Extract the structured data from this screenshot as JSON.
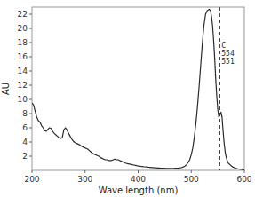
{
  "chart_data": {
    "type": "line",
    "xlabel": "Wave length  (nm)",
    "ylabel": "AU",
    "xlim": [
      200,
      600
    ],
    "ylim": [
      0,
      23
    ],
    "xticks": [
      200,
      300,
      400,
      500,
      600
    ],
    "yticks": [
      2,
      4,
      6,
      8,
      10,
      12,
      14,
      16,
      18,
      20,
      22
    ],
    "color": "#2a2a2a",
    "grid": false,
    "annotations": [
      {
        "text": "C\n554\n551",
        "x": 557,
        "y": 16.5
      }
    ],
    "vlines": [
      554
    ],
    "x": [
      200,
      203,
      206,
      209,
      212,
      215,
      218,
      221,
      224,
      227,
      230,
      233,
      236,
      239,
      242,
      245,
      248,
      251,
      254,
      257,
      260,
      263,
      266,
      269,
      272,
      275,
      278,
      281,
      284,
      287,
      290,
      293,
      296,
      299,
      302,
      305,
      308,
      311,
      314,
      317,
      320,
      323,
      326,
      329,
      332,
      335,
      338,
      341,
      344,
      347,
      350,
      353,
      356,
      359,
      362,
      365,
      368,
      371,
      374,
      377,
      380,
      383,
      386,
      389,
      392,
      395,
      398,
      401,
      404,
      407,
      410,
      413,
      416,
      419,
      422,
      425,
      428,
      431,
      434,
      437,
      440,
      443,
      446,
      449,
      452,
      455,
      458,
      461,
      464,
      467,
      470,
      473,
      476,
      479,
      482,
      485,
      488,
      491,
      494,
      497,
      500,
      503,
      506,
      509,
      512,
      515,
      518,
      521,
      524,
      527,
      530,
      532,
      534,
      536,
      538,
      540,
      542,
      544,
      546,
      548,
      550,
      552,
      554,
      556,
      558,
      560,
      562,
      564,
      566,
      568,
      570,
      573,
      576,
      579,
      582,
      585,
      588,
      591,
      594,
      597,
      600
    ],
    "values": [
      9.5,
      9.2,
      8.3,
      7.5,
      7.0,
      6.8,
      6.3,
      6.0,
      5.6,
      5.5,
      5.8,
      6.0,
      5.9,
      5.5,
      5.2,
      5.0,
      4.8,
      4.6,
      4.5,
      4.6,
      5.7,
      6.0,
      5.7,
      5.2,
      4.8,
      4.4,
      4.1,
      3.9,
      3.8,
      3.7,
      3.6,
      3.4,
      3.3,
      3.2,
      3.1,
      3.0,
      2.8,
      2.6,
      2.4,
      2.3,
      2.2,
      2.1,
      2.0,
      1.8,
      1.7,
      1.6,
      1.5,
      1.5,
      1.4,
      1.4,
      1.4,
      1.5,
      1.6,
      1.5,
      1.5,
      1.4,
      1.3,
      1.2,
      1.1,
      1.0,
      0.95,
      0.9,
      0.85,
      0.8,
      0.75,
      0.7,
      0.65,
      0.62,
      0.58,
      0.55,
      0.52,
      0.5,
      0.48,
      0.45,
      0.43,
      0.4,
      0.38,
      0.36,
      0.35,
      0.33,
      0.32,
      0.31,
      0.3,
      0.29,
      0.28,
      0.28,
      0.28,
      0.28,
      0.28,
      0.28,
      0.29,
      0.3,
      0.32,
      0.35,
      0.4,
      0.48,
      0.6,
      0.8,
      1.1,
      1.5,
      2.2,
      3.2,
      4.8,
      6.8,
      9.2,
      12.0,
      15.0,
      18.0,
      20.5,
      22.0,
      22.5,
      22.6,
      22.7,
      22.5,
      21.8,
      20.5,
      18.5,
      16.0,
      13.0,
      10.5,
      8.5,
      7.5,
      7.8,
      8.2,
      7.5,
      5.5,
      3.8,
      2.5,
      1.8,
      1.3,
      1.0,
      0.8,
      0.6,
      0.45,
      0.35,
      0.28,
      0.22,
      0.18,
      0.14,
      0.1,
      0.08
    ]
  }
}
